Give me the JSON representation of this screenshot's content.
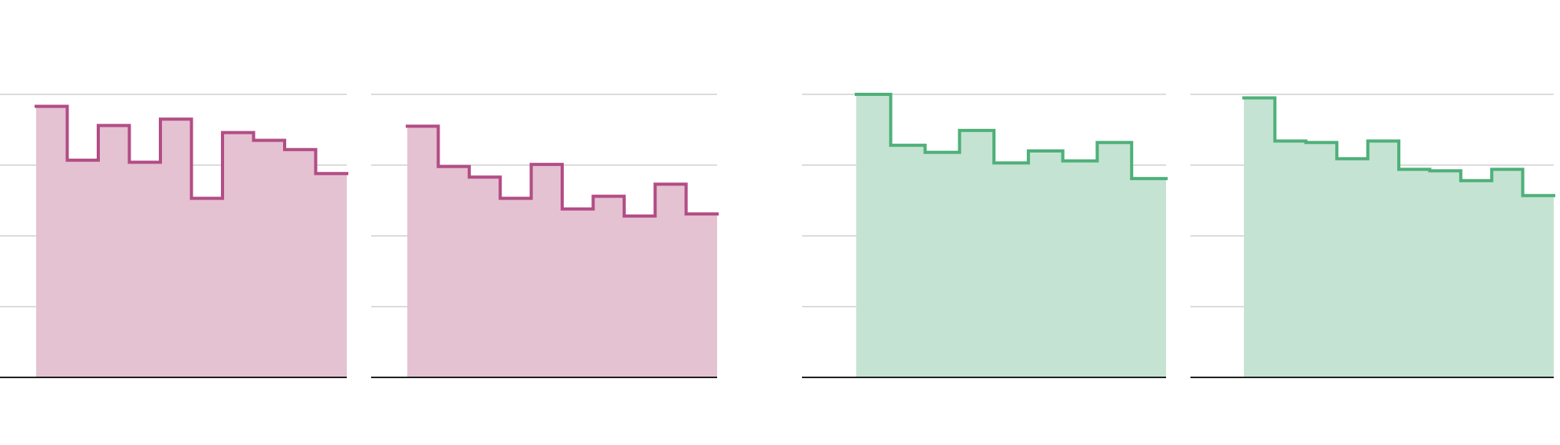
{
  "colors": {
    "pink_line": "#b34d86",
    "pink_fill": "#e4c2d1",
    "green_line": "#4fb07a",
    "green_fill": "#c5e3d2",
    "grid": "#b8b8b8",
    "axis": "#222222"
  },
  "chart_data": [
    {
      "type": "area",
      "step": true,
      "grid": true,
      "ylim": [
        0,
        4
      ],
      "color": "pink",
      "values": [
        3.83,
        3.07,
        3.56,
        3.04,
        3.65,
        2.53,
        3.46,
        3.35,
        3.22,
        2.88
      ]
    },
    {
      "type": "area",
      "step": true,
      "grid": true,
      "ylim": [
        0,
        4
      ],
      "color": "pink",
      "values": [
        3.55,
        2.98,
        2.83,
        2.53,
        3.01,
        2.38,
        2.56,
        2.28,
        2.73,
        2.31
      ]
    },
    {
      "type": "area",
      "step": true,
      "grid": true,
      "ylim": [
        0,
        4
      ],
      "color": "green",
      "values": [
        4.0,
        3.28,
        3.18,
        3.49,
        3.03,
        3.2,
        3.06,
        3.32,
        2.81
      ]
    },
    {
      "type": "area",
      "step": true,
      "grid": true,
      "ylim": [
        0,
        4
      ],
      "color": "green",
      "values": [
        3.95,
        3.34,
        3.32,
        3.09,
        3.34,
        2.94,
        2.92,
        2.78,
        2.94,
        2.57
      ]
    }
  ]
}
